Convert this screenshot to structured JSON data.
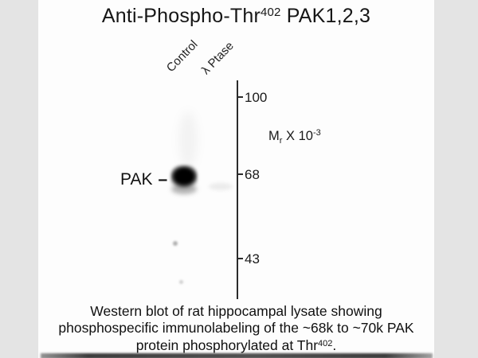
{
  "title": {
    "prefix": "Anti-Phospho-Thr",
    "superscript": "402",
    "suffix": " PAK1,2,3"
  },
  "blot": {
    "lanes": [
      {
        "label": "Control"
      },
      {
        "label": "λ Ptase"
      }
    ],
    "band_label": {
      "text": "PAK",
      "dash": "–"
    },
    "markers": [
      {
        "value": "100"
      },
      {
        "value": "68"
      },
      {
        "value": "43"
      }
    ],
    "marker_scale": {
      "m": "M",
      "sub": "r",
      "rest": " X 10",
      "sup": "-3"
    },
    "bands": [
      {
        "lane": "Control",
        "approx_kda": "68-70",
        "intensity": "strong"
      },
      {
        "lane": "λ Ptase",
        "approx_kda": "68-70",
        "intensity": "very faint"
      }
    ]
  },
  "caption": {
    "line1": "Western blot of rat hippocampal lysate showing",
    "line2": "phosphospecific immunolabeling of the ~68k to ~70k PAK",
    "line3_prefix": "protein phosphorylated at Thr",
    "line3_sup": "402",
    "line3_suffix": "."
  },
  "colors": {
    "margin_gray": "#e4e4e4",
    "background": "#fdfdfd",
    "ink": "#1a1a1a",
    "marker_line": "#2b2b2b",
    "band": "#000000"
  }
}
